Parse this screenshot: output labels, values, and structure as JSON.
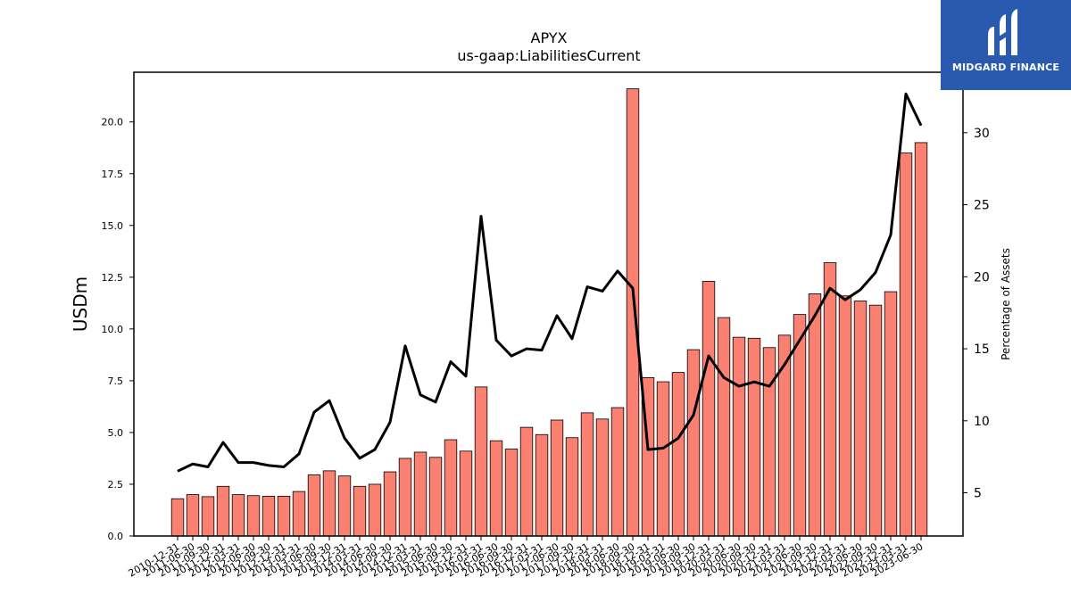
{
  "chart_data": {
    "type": "bar",
    "title": "APYX",
    "subtitle": "us-gaap:LiabilitiesCurrent",
    "ylabel": "USDm",
    "ylabel_right": "Percentage of Assets",
    "categories": [
      "2010-12-31",
      "2011-06-30",
      "2011-09-30",
      "2011-12-31",
      "2012-03-31",
      "2012-06-30",
      "2012-09-30",
      "2012-12-31",
      "2013-03-31",
      "2013-06-30",
      "2013-09-30",
      "2013-12-31",
      "2014-03-31",
      "2014-06-30",
      "2014-09-30",
      "2014-12-31",
      "2015-03-31",
      "2015-06-30",
      "2015-09-30",
      "2015-12-31",
      "2016-03-31",
      "2016-06-30",
      "2016-09-30",
      "2016-12-31",
      "2017-03-31",
      "2017-06-30",
      "2017-09-30",
      "2017-12-31",
      "2018-03-31",
      "2018-06-30",
      "2018-09-30",
      "2018-12-31",
      "2019-03-31",
      "2019-06-30",
      "2019-09-30",
      "2019-12-31",
      "2020-03-31",
      "2020-06-30",
      "2020-09-30",
      "2020-12-31",
      "2021-03-31",
      "2021-06-30",
      "2021-09-30",
      "2021-12-31",
      "2022-03-31",
      "2022-06-30",
      "2022-09-30",
      "2022-12-31",
      "2023-03-31",
      "2023-06-30"
    ],
    "series": [
      {
        "name": "",
        "axis": "left",
        "kind": "bar",
        "values": [
          1.8,
          2.0,
          1.9,
          2.4,
          2.0,
          1.95,
          1.92,
          1.92,
          2.15,
          2.95,
          3.15,
          2.9,
          2.4,
          2.5,
          3.1,
          3.75,
          4.05,
          3.8,
          4.65,
          4.1,
          7.2,
          4.6,
          4.2,
          5.25,
          4.9,
          5.6,
          4.75,
          5.95,
          5.65,
          6.2,
          21.6,
          7.65,
          7.45,
          7.9,
          9.0,
          12.3,
          10.55,
          9.6,
          9.55,
          9.1,
          9.7,
          10.7,
          11.7,
          13.2,
          11.6,
          11.35,
          11.15,
          11.8,
          18.5,
          19.0
        ]
      },
      {
        "name": "",
        "axis": "right",
        "kind": "line",
        "values": [
          6.5,
          7.0,
          6.8,
          8.5,
          7.1,
          7.1,
          6.9,
          6.8,
          7.7,
          10.6,
          11.4,
          8.8,
          7.4,
          8.0,
          9.9,
          15.2,
          11.8,
          11.3,
          14.1,
          13.1,
          24.2,
          15.6,
          14.5,
          15.0,
          14.9,
          17.3,
          15.7,
          19.3,
          19.0,
          20.4,
          19.2,
          8.0,
          8.1,
          8.8,
          10.4,
          14.5,
          13.0,
          12.4,
          12.7,
          12.4,
          13.9,
          15.6,
          17.3,
          19.2,
          18.4,
          19.1,
          20.3,
          22.9,
          32.7,
          30.5
        ]
      }
    ],
    "ylim": [
      0,
      22.4
    ],
    "ylim_right": [
      2,
      34.2
    ],
    "yticks": [
      "0.0",
      "2.5",
      "5.0",
      "7.5",
      "10.0",
      "12.5",
      "15.0",
      "17.5",
      "20.0"
    ],
    "yticks_right": [
      "5",
      "10",
      "15",
      "20",
      "25",
      "30"
    ],
    "grid": false,
    "colors": {
      "bar": "#fa8072",
      "line": "#000000"
    }
  },
  "logo": {
    "text": "MIDGARD FINANCE",
    "background": "#2a5ab0"
  }
}
